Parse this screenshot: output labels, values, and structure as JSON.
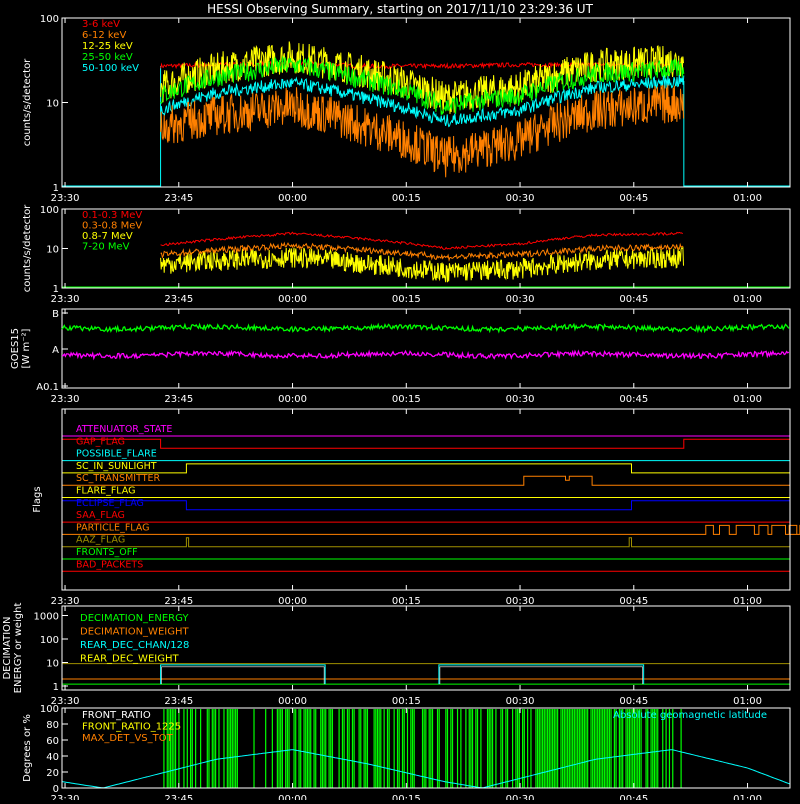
{
  "title": "HESSI Observing Summary, starting on 2017/11/10 23:29:36 UT",
  "time_ticks": [
    "23:30",
    "23:45",
    "00:00",
    "00:15",
    "00:30",
    "00:45",
    "01:00"
  ],
  "colors": {
    "red": "#ff0000",
    "orange": "#ff8000",
    "yellow": "#ffff00",
    "green": "#00ff00",
    "cyan": "#00ffff",
    "magenta": "#ff00ff",
    "blue": "#0000ff",
    "white": "#ffffff",
    "olive": "#a09000"
  },
  "chart_data": [
    {
      "panel": "counts_low",
      "type": "line",
      "ylabel": "counts/s/detector",
      "yscale": "log",
      "ylim": [
        1,
        100
      ],
      "ytick_labels": [
        "1",
        "10",
        "100"
      ],
      "x_range_minutes": [
        -0.4,
        95.6
      ],
      "data_span_minutes": [
        12.6,
        81.6
      ],
      "legend": [
        {
          "name": "3-6 keV",
          "color": "#ff0000"
        },
        {
          "name": "6-12 keV",
          "color": "#ff8000"
        },
        {
          "name": "12-25 keV",
          "color": "#ffff00"
        },
        {
          "name": "25-50 keV",
          "color": "#00ff00"
        },
        {
          "name": "50-100 keV",
          "color": "#00ffff"
        }
      ],
      "series": [
        {
          "name": "3-6 keV",
          "color": "#ff0000",
          "x": [
            12.6,
            20,
            30,
            40,
            50,
            60,
            70,
            81.6
          ],
          "y": [
            27,
            28,
            29,
            27,
            27,
            28,
            28,
            28
          ]
        },
        {
          "name": "25-50 keV",
          "color": "#00ff00",
          "x": [
            12.6,
            20,
            30,
            40,
            50,
            60,
            70,
            81.6
          ],
          "y": [
            12,
            20,
            28,
            18,
            9,
            12,
            22,
            25
          ]
        },
        {
          "name": "50-100 keV",
          "color": "#00ffff",
          "x": [
            12.6,
            20,
            30,
            40,
            50,
            60,
            70,
            81.6
          ],
          "y": [
            8,
            13,
            17,
            11,
            6,
            8,
            15,
            18
          ]
        },
        {
          "name": "6-12 keV",
          "color": "#ff8000",
          "x": [
            12.6,
            20,
            30,
            40,
            50,
            60,
            70,
            81.6
          ],
          "y": [
            5,
            7,
            9,
            5,
            2.2,
            3.5,
            8,
            10
          ]
        }
      ]
    },
    {
      "panel": "counts_high",
      "type": "line",
      "ylabel": "counts/s/detector",
      "yscale": "log",
      "ylim": [
        1,
        100
      ],
      "ytick_labels": [
        "1",
        "10",
        "100"
      ],
      "legend": [
        {
          "name": "0.1-0.3 MeV",
          "color": "#ff0000"
        },
        {
          "name": "0.3-0.8 MeV",
          "color": "#ff8000"
        },
        {
          "name": "0.8-7 MeV",
          "color": "#ffff00"
        },
        {
          "name": "7-20 MeV",
          "color": "#00ff00"
        }
      ],
      "series": [
        {
          "name": "0.1-0.3 MeV",
          "color": "#ff0000",
          "x": [
            12.6,
            20,
            30,
            40,
            50,
            60,
            70,
            81.6
          ],
          "y": [
            12,
            17,
            24,
            17,
            10,
            13,
            22,
            24
          ]
        },
        {
          "name": "0.3-0.8 MeV",
          "color": "#ff8000",
          "x": [
            12.6,
            20,
            30,
            40,
            50,
            60,
            70,
            81.6
          ],
          "y": [
            7,
            9,
            12,
            9,
            6,
            7,
            10,
            11
          ]
        },
        {
          "name": "0.8-7 MeV",
          "color": "#ffff00",
          "x": [
            12.6,
            20,
            30,
            40,
            50,
            60,
            70,
            81.6
          ],
          "y": [
            4,
            5,
            6,
            4,
            2.5,
            3,
            5,
            6
          ]
        },
        {
          "name": "7-20 MeV",
          "color": "#00ff00",
          "x": [
            -0.4,
            95.6
          ],
          "y": [
            1,
            1
          ]
        }
      ]
    },
    {
      "panel": "goes",
      "type": "line",
      "ylabel": "GOES15",
      "ylabel2": "[W m⁻²]",
      "yscale": "log",
      "ytick_labels": [
        "A0.1",
        "A",
        "B"
      ],
      "series": [
        {
          "name": "goes_long",
          "color": "#00ff00",
          "level_fraction": 0.76
        },
        {
          "name": "goes_short",
          "color": "#ff00ff",
          "level_fraction": 0.42
        }
      ]
    },
    {
      "panel": "flags",
      "type": "table",
      "ylabel": "Flags",
      "rows": [
        {
          "name": "ATTENUATOR_STATE",
          "color": "#ff00ff"
        },
        {
          "name": "GAP_FLAG",
          "color": "#ff0000"
        },
        {
          "name": "POSSIBLE_FLARE",
          "color": "#00ffff"
        },
        {
          "name": "SC_IN_SUNLIGHT",
          "color": "#ffff00"
        },
        {
          "name": "SC_TRANSMITTER",
          "color": "#ff8000"
        },
        {
          "name": "FLARE_FLAG",
          "color": "#ffff00"
        },
        {
          "name": "ECLIPSE_FLAG",
          "color": "#0000ff"
        },
        {
          "name": "SAA_FLAG",
          "color": "#ff0000"
        },
        {
          "name": "PARTICLE_FLAG",
          "color": "#ff8000"
        },
        {
          "name": "AAZ_FLAG",
          "color": "#a09000"
        },
        {
          "name": "FRONTS_OFF",
          "color": "#00ff00"
        },
        {
          "name": "BAD_PACKETS",
          "color": "#ff0000"
        }
      ]
    },
    {
      "panel": "decimation",
      "type": "line",
      "ylabel": "DECIMATION",
      "ylabel2": "ENERGY or weight",
      "yscale": "log",
      "ytick_labels": [
        "1",
        "10",
        "100",
        "1000"
      ],
      "legend": [
        {
          "name": "DECIMATION_ENERGY",
          "color": "#00ff00"
        },
        {
          "name": "DECIMATION_WEIGHT",
          "color": "#ff8000"
        },
        {
          "name": "REAR_DEC_CHAN/128",
          "color": "#00ffff"
        },
        {
          "name": "REAR_DEC_WEIGHT",
          "color": "#ffff00"
        }
      ]
    },
    {
      "panel": "geomag",
      "type": "line",
      "ylabel": "Degrees or %",
      "ylim": [
        0,
        100
      ],
      "ytick_labels": [
        "0",
        "20",
        "40",
        "60",
        "80",
        "100"
      ],
      "legend": [
        {
          "name": "FRONT_RATIO",
          "color": "#ffffff"
        },
        {
          "name": "FRONT_RATIO_1225",
          "color": "#ffff00"
        },
        {
          "name": "MAX_DET_VS_TOT",
          "color": "#ff8000"
        }
      ],
      "right_label": "Absolute geomagnetic latitude",
      "series": [
        {
          "name": "Absolute geomagnetic latitude",
          "color": "#00ffff",
          "x": [
            -0.4,
            5,
            10,
            20,
            30,
            40,
            50,
            55,
            60,
            70,
            80,
            90,
            95.6
          ],
          "y": [
            8,
            0,
            12,
            36,
            48,
            30,
            8,
            0,
            12,
            36,
            48,
            25,
            5
          ]
        }
      ]
    }
  ]
}
